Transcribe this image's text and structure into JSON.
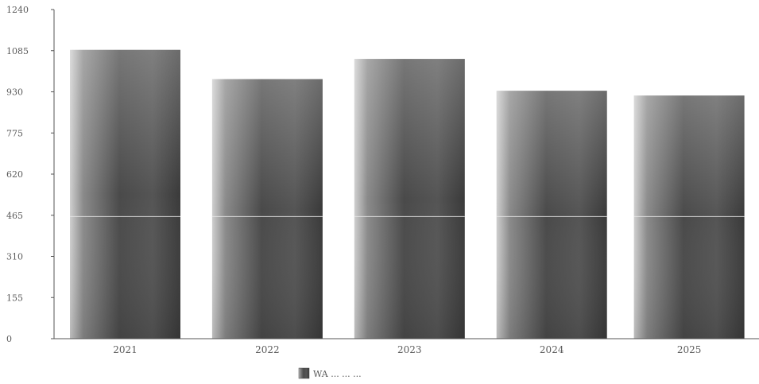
{
  "chart_data": {
    "type": "bar",
    "categories": [
      "2021",
      "2022",
      "2023",
      "2024",
      "2025"
    ],
    "series": [
      {
        "name": "WA ... ... ...",
        "values": [
          1088,
          978,
          1054,
          934,
          916
        ]
      }
    ],
    "yticks": [
      0,
      155,
      310,
      465,
      620,
      775,
      930,
      1085,
      1240
    ],
    "ytick_labels": [
      "0",
      "155",
      "310",
      "465",
      "620",
      "775",
      "930",
      "1085",
      "1240"
    ],
    "ylim": [
      0,
      1240
    ],
    "grid": false,
    "legend": "bottom-center",
    "colors": {
      "bar": "#7a7a7a",
      "bar_dark": "#3c3c3c",
      "bar_light": "#bdbdbd",
      "axis": "#555555",
      "text": "#5a5a5a"
    }
  }
}
